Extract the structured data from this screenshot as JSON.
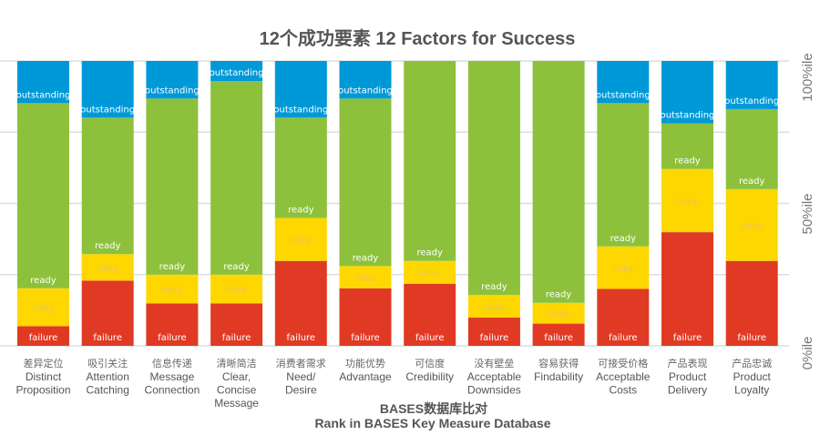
{
  "chart_data": {
    "type": "bar",
    "stacked": true,
    "title": "12个成功要素 12 Factors for Success",
    "xlabel": [
      "BASES数据库比对",
      "Rank in BASES Key Measure Database"
    ],
    "ylabel": "",
    "ylim": [
      0,
      100
    ],
    "y_ticks": [
      "0%ile",
      "50%ile",
      "100%ile"
    ],
    "y_axis_position": "right",
    "grid": true,
    "legend": "none (segment labels inside bars)",
    "categories": [
      {
        "cn": "差异定位",
        "en": [
          "Distinct",
          "Proposition"
        ]
      },
      {
        "cn": "吸引关注",
        "en": [
          "Attention",
          "Catching"
        ]
      },
      {
        "cn": "信息传递",
        "en": [
          "Message",
          "Connection"
        ]
      },
      {
        "cn": "清晰简洁",
        "en": [
          "Clear,",
          "Concise",
          "Message"
        ]
      },
      {
        "cn": "消费者需求",
        "en": [
          "Need/",
          "Desire"
        ]
      },
      {
        "cn": "功能优势",
        "en": [
          "Advantage"
        ]
      },
      {
        "cn": "可信度",
        "en": [
          "Credibility"
        ]
      },
      {
        "cn": "没有壁垒",
        "en": [
          "Acceptable",
          "Downsides"
        ]
      },
      {
        "cn": "容易获得",
        "en": [
          "Findability"
        ]
      },
      {
        "cn": "可接受价格",
        "en": [
          "Acceptable",
          "Costs"
        ]
      },
      {
        "cn": "产品表现",
        "en": [
          "Product",
          "Delivery"
        ]
      },
      {
        "cn": "产品忠诚",
        "en": [
          "Product",
          "Loyalty"
        ]
      }
    ],
    "series": [
      {
        "name": "failure",
        "color": "#e03a24",
        "label_color": "#ffffff",
        "values": [
          6.9,
          22.9,
          14.9,
          14.9,
          29.8,
          20.2,
          21.8,
          9.9,
          7.8,
          20.0,
          39.9,
          29.8
        ]
      },
      {
        "name": "risky",
        "color": "#fed700",
        "label_color": "#e8c45a",
        "values": [
          13.3,
          9.3,
          10.1,
          10.1,
          15.1,
          7.8,
          8.0,
          8.0,
          7.3,
          14.9,
          22.2,
          25.2
        ]
      },
      {
        "name": "ready",
        "color": "#8dc13c",
        "label_color": "#ffffff",
        "values": [
          65.0,
          47.9,
          61.8,
          67.9,
          35.2,
          58.8,
          70.2,
          82.1,
          84.9,
          50.3,
          16.0,
          28.1
        ]
      },
      {
        "name": "outstanding",
        "color": "#0099d8",
        "label_color": "#ffffff",
        "values": [
          14.8,
          19.9,
          13.2,
          7.1,
          19.9,
          13.2,
          0,
          0,
          0,
          14.8,
          21.9,
          16.9
        ]
      }
    ]
  }
}
